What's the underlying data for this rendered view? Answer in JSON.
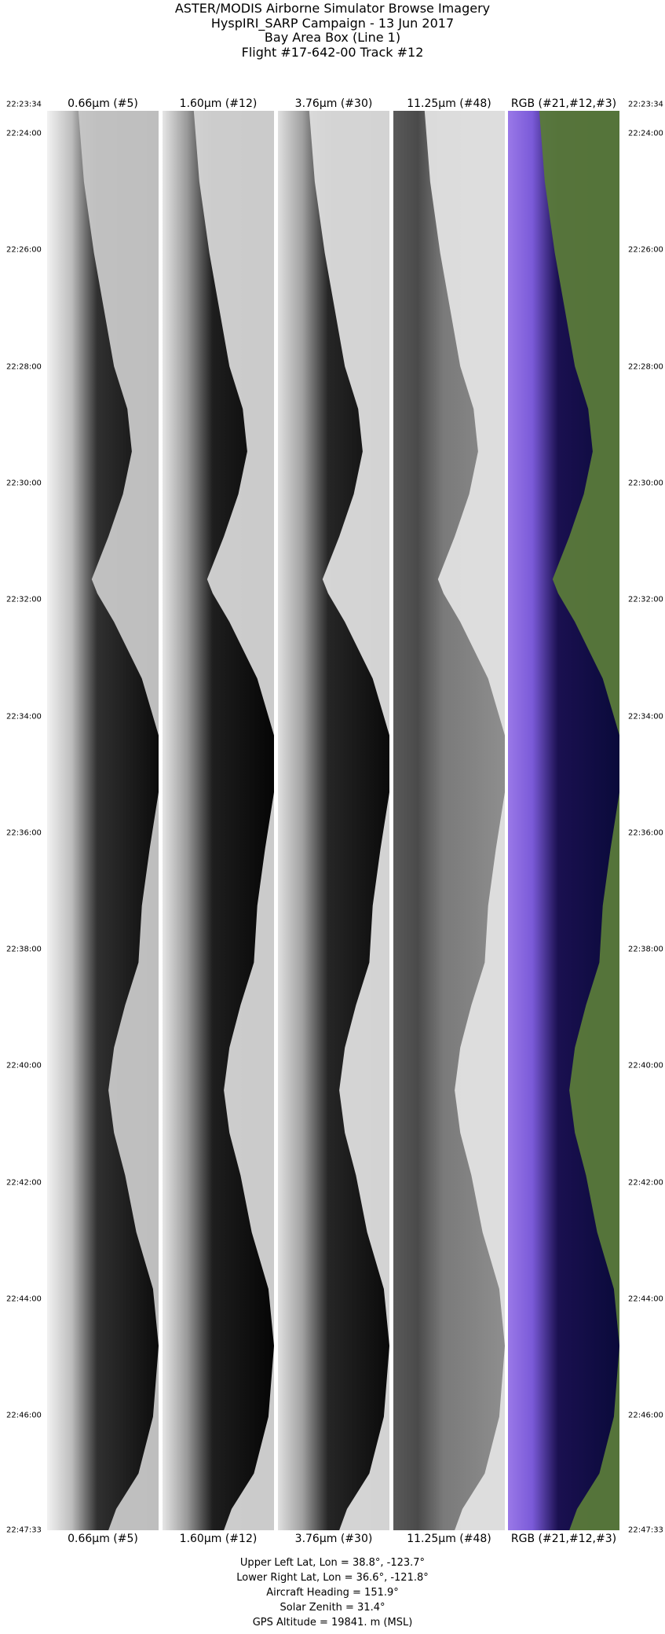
{
  "title_lines": [
    "ASTER/MODIS Airborne Simulator Browse Imagery",
    "HyspIRI_SARP Campaign - 13 Jun 2017",
    "Bay Area Box (Line 1)",
    "Flight #17-642-00 Track #12"
  ],
  "bands": [
    {
      "label": "0.66µm (#5)",
      "type": "visible"
    },
    {
      "label": "1.60µm (#12)",
      "type": "swir"
    },
    {
      "label": "3.76µm (#30)",
      "type": "mwir"
    },
    {
      "label": "11.25µm (#48)",
      "type": "thermal"
    },
    {
      "label": "RGB (#21,#12,#3)",
      "type": "rgb"
    }
  ],
  "times": [
    "22:23:34",
    "22:24:00",
    "22:26:00",
    "22:28:00",
    "22:30:00",
    "22:32:00",
    "22:34:00",
    "22:36:00",
    "22:38:00",
    "22:40:00",
    "22:42:00",
    "22:44:00",
    "22:46:00",
    "22:47:33"
  ],
  "info": [
    "Upper Left Lat, Lon =   38.8°, -123.7°",
    "Lower Right Lat, Lon =   36.6°, -121.8°",
    "Aircraft Heading =  151.9°",
    "Solar Zenith =   31.4°",
    "GPS Altitude =  19841. m (MSL)"
  ],
  "colors": {
    "rgb_glint": "#9a78e8",
    "rgb_water": "#0a0a3a",
    "rgb_land": "#5a7a3a"
  }
}
